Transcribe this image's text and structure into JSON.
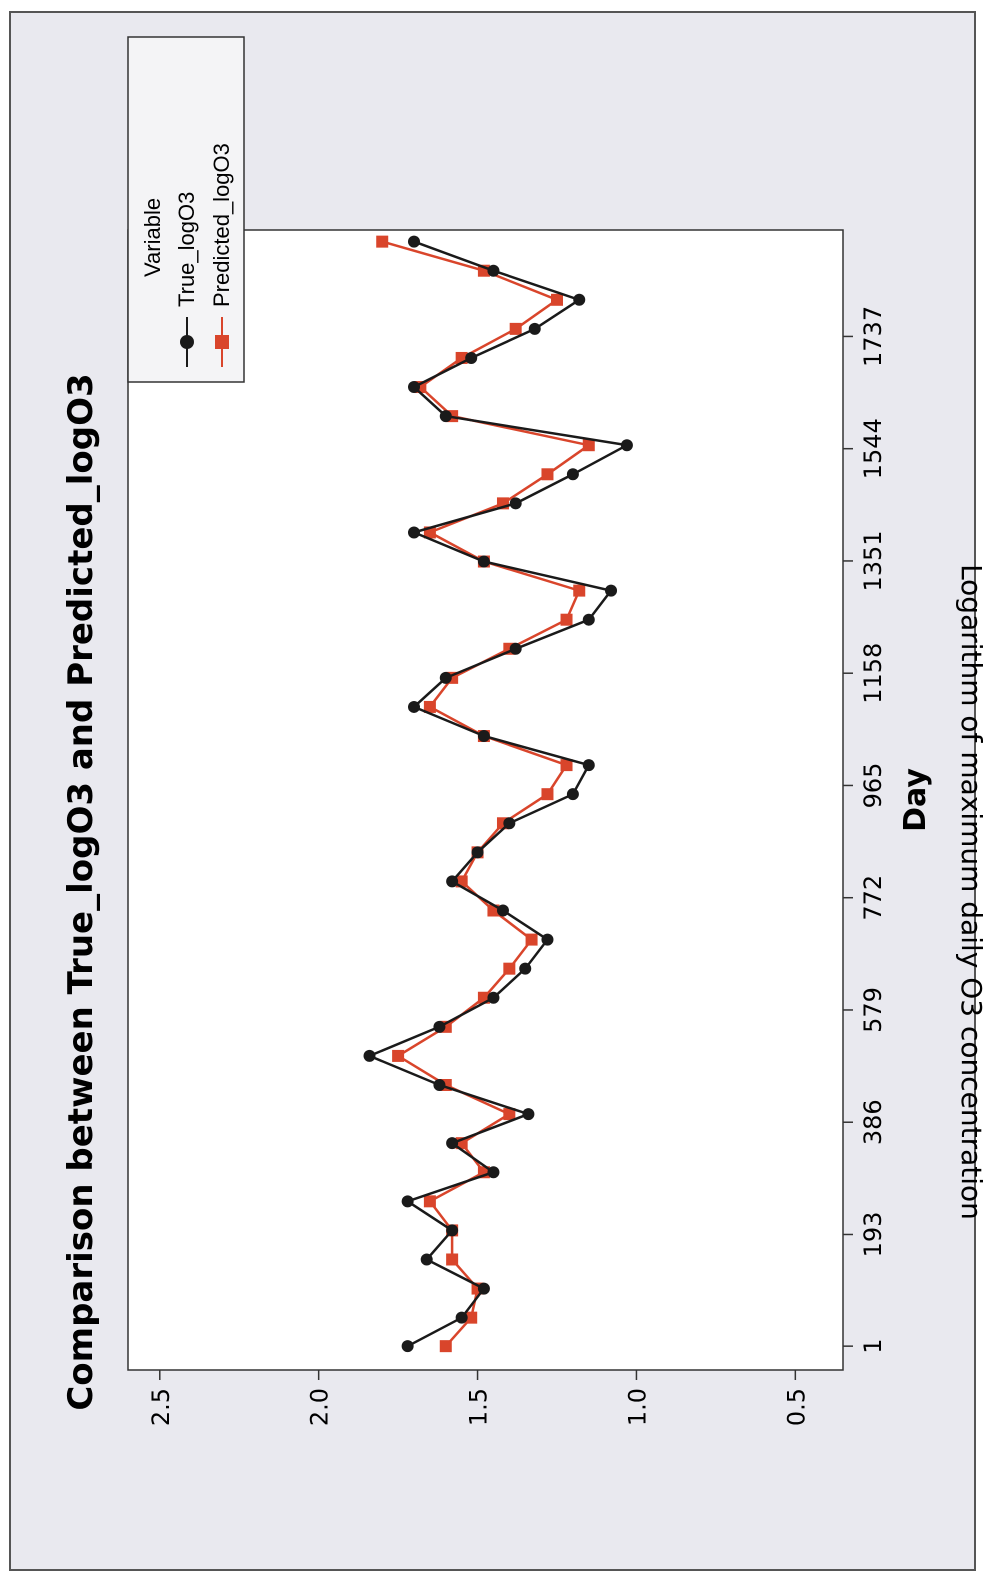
{
  "chart_data": {
    "type": "line",
    "title": "Comparison between True_logO3 and Predicted_logO3",
    "xlabel": "Day",
    "ylabel": "Logarithm of maximum daily O3 concentration",
    "x_ticks": [
      "1",
      "193",
      "386",
      "579",
      "772",
      "965",
      "1158",
      "1351",
      "1544",
      "1737"
    ],
    "x_tick_values": [
      1,
      193,
      386,
      579,
      772,
      965,
      1158,
      1351,
      1544,
      1737
    ],
    "y_ticks": [
      "0.5",
      "1.0",
      "1.5",
      "2.0",
      "2.5"
    ],
    "y_tick_values": [
      0.5,
      1.0,
      1.5,
      2.0,
      2.5
    ],
    "xlim": [
      -40,
      1920
    ],
    "ylim": [
      0.35,
      2.6
    ],
    "grid": false,
    "legend": {
      "title": "Variable",
      "position": "top-right"
    },
    "series": [
      {
        "name": "True_logO3",
        "marker": "circle",
        "color": "#1a1a1a",
        "x": [
          1,
          50,
          100,
          150,
          200,
          250,
          300,
          350,
          400,
          450,
          500,
          550,
          600,
          650,
          700,
          750,
          800,
          850,
          900,
          950,
          1000,
          1050,
          1100,
          1150,
          1200,
          1250,
          1300,
          1350,
          1400,
          1450,
          1500,
          1550,
          1600,
          1650,
          1700,
          1750,
          1800,
          1850,
          1900
        ],
        "y": [
          1.72,
          1.55,
          1.48,
          1.66,
          1.58,
          1.72,
          1.45,
          1.58,
          1.34,
          1.62,
          1.84,
          1.62,
          1.45,
          1.35,
          1.28,
          1.42,
          1.58,
          1.5,
          1.4,
          1.2,
          1.15,
          1.48,
          1.7,
          1.6,
          1.38,
          1.15,
          1.08,
          1.48,
          1.7,
          1.38,
          1.2,
          1.03,
          1.6,
          1.7,
          1.52,
          1.32,
          1.18,
          1.45,
          1.7
        ]
      },
      {
        "name": "Predicted_logO3",
        "marker": "square",
        "color": "#d9452b",
        "x": [
          1,
          50,
          100,
          150,
          200,
          250,
          300,
          350,
          400,
          450,
          500,
          550,
          600,
          650,
          700,
          750,
          800,
          850,
          900,
          950,
          1000,
          1050,
          1100,
          1150,
          1200,
          1250,
          1300,
          1350,
          1400,
          1450,
          1500,
          1550,
          1600,
          1650,
          1700,
          1750,
          1800,
          1850,
          1900
        ],
        "y": [
          1.6,
          1.52,
          1.5,
          1.58,
          1.58,
          1.65,
          1.48,
          1.55,
          1.4,
          1.6,
          1.75,
          1.6,
          1.48,
          1.4,
          1.33,
          1.45,
          1.55,
          1.5,
          1.42,
          1.28,
          1.22,
          1.48,
          1.65,
          1.58,
          1.4,
          1.22,
          1.18,
          1.48,
          1.65,
          1.42,
          1.28,
          1.15,
          1.58,
          1.68,
          1.55,
          1.38,
          1.25,
          1.48,
          1.8
        ]
      }
    ]
  },
  "colors": {
    "background": "#ffffff",
    "plot_panel": "#e9e9ef",
    "plot_area": "#ffffff",
    "true_series": "#1a1a1a",
    "predicted_series": "#d9452b"
  }
}
